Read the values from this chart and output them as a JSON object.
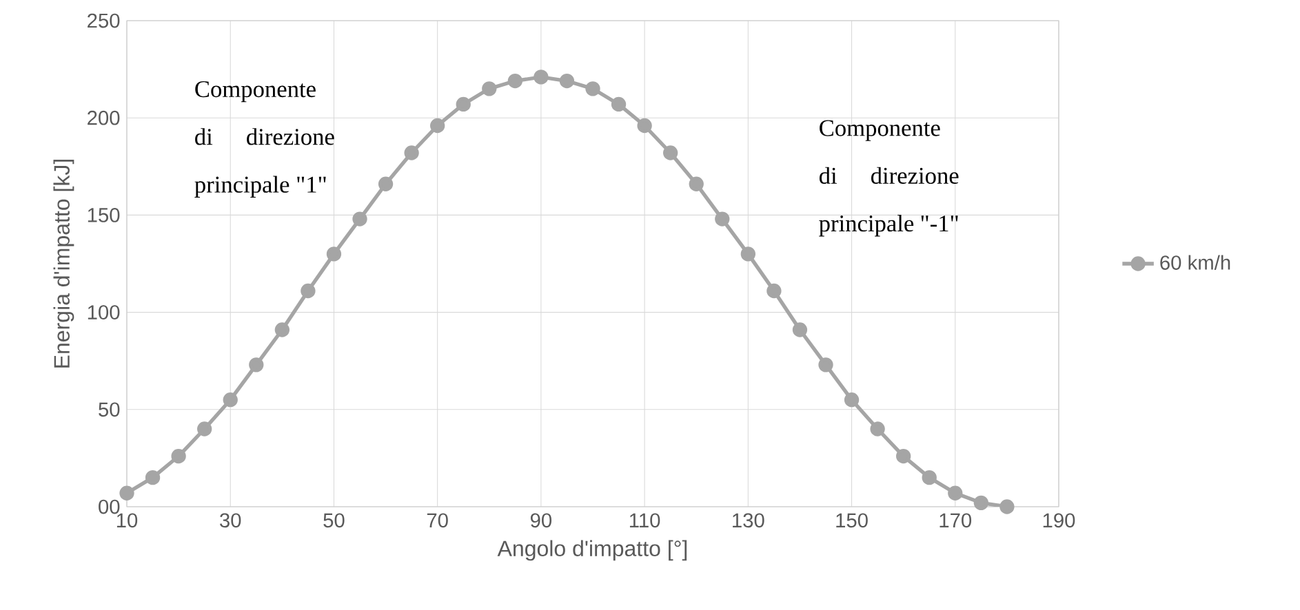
{
  "chart_data": {
    "type": "line",
    "xlabel": "Angolo d'impatto [°]",
    "ylabel": "Energia d'impatto [kJ]",
    "x": [
      10,
      15,
      20,
      25,
      30,
      35,
      40,
      45,
      50,
      55,
      60,
      65,
      70,
      75,
      80,
      85,
      90,
      95,
      100,
      105,
      110,
      115,
      120,
      125,
      130,
      135,
      140,
      145,
      150,
      155,
      160,
      165,
      170,
      175,
      180
    ],
    "series": [
      {
        "name": "60 km/h",
        "color": "#a5a5a5",
        "values": [
          7,
          15,
          26,
          40,
          55,
          73,
          91,
          111,
          130,
          148,
          166,
          182,
          196,
          207,
          215,
          219,
          221,
          219,
          215,
          207,
          196,
          182,
          166,
          148,
          130,
          111,
          91,
          73,
          55,
          40,
          26,
          15,
          7,
          2,
          0
        ]
      }
    ],
    "xlim": [
      10,
      190
    ],
    "xticks": [
      10,
      30,
      50,
      70,
      90,
      110,
      130,
      150,
      170,
      190
    ],
    "ylim": [
      0,
      250
    ],
    "yticks": [
      {
        "value": 0,
        "label": "00"
      },
      50,
      100,
      150,
      200,
      250
    ],
    "grid": true,
    "legend": "right",
    "marker": "circle",
    "line_style": "solid",
    "annotations": [
      "Componente di direzione principale \"1\"",
      "Componente di direzione principale \"-1\""
    ]
  }
}
